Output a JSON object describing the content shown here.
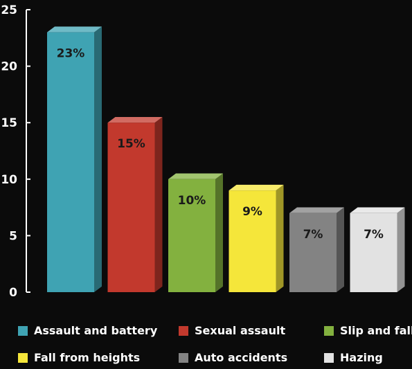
{
  "chart_data": {
    "type": "bar",
    "categories": [
      "Assault and battery",
      "Sexual assault",
      "Slip and fall",
      "Fall from heights",
      "Auto accidents",
      "Hazing"
    ],
    "values": [
      23,
      15,
      10,
      9,
      7,
      7
    ],
    "data_labels": [
      "23%",
      "15%",
      "10%",
      "9%",
      "7%",
      "7%"
    ],
    "colors": [
      "#3fa3b3",
      "#c2392d",
      "#83b13f",
      "#f5e63a",
      "#838383",
      "#e2e2e2"
    ],
    "ylim": [
      0,
      25
    ],
    "yticks": [
      "0",
      "5",
      "10",
      "15",
      "20",
      "25"
    ],
    "grid": false,
    "legend_position": "bottom"
  }
}
